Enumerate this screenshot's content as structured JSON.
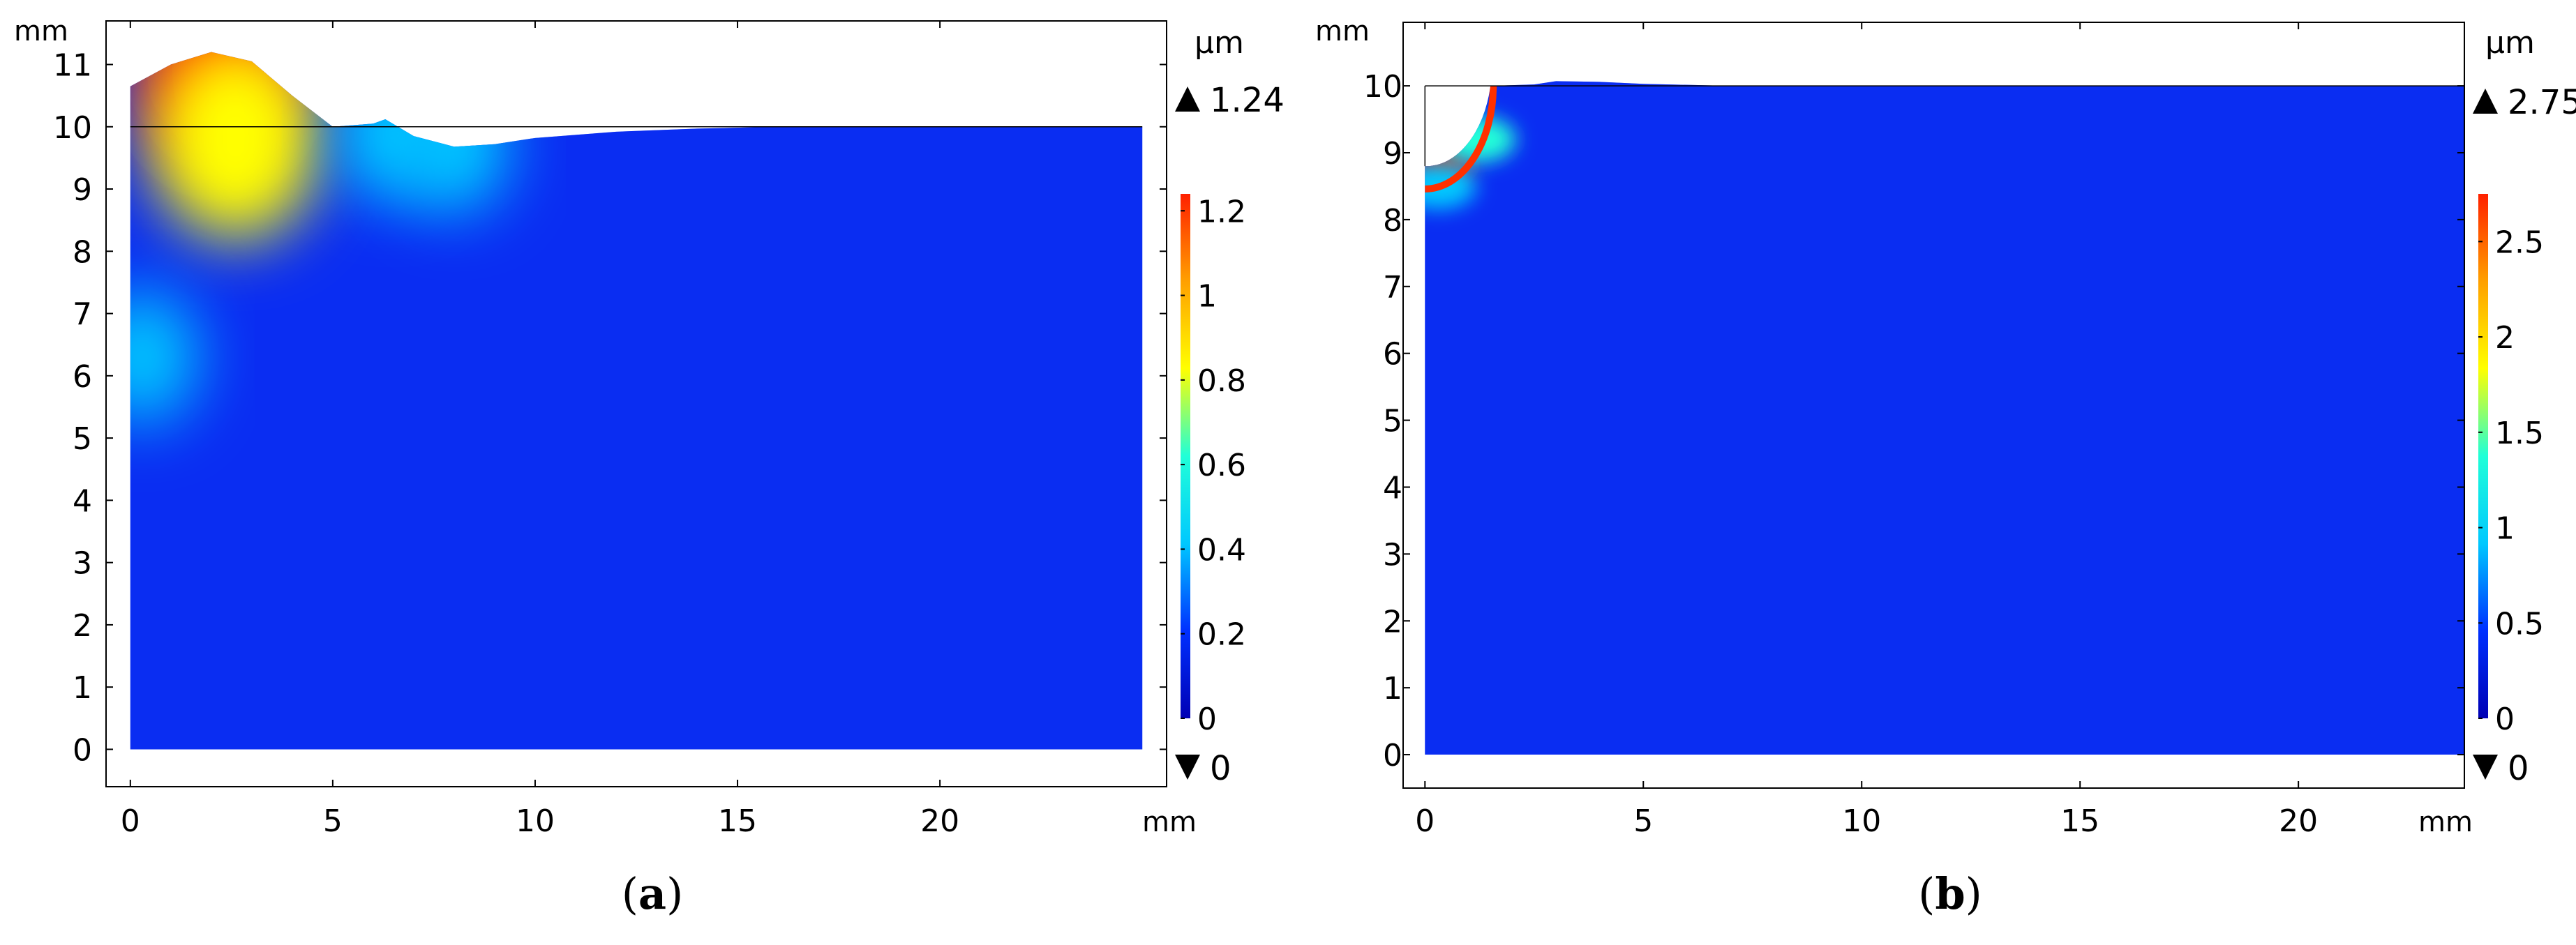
{
  "panels": [
    {
      "id": "a",
      "caption_letter": "a",
      "x_unit": "mm",
      "y_unit": "mm",
      "colorbar_unit": "µm",
      "max_label": "1.24",
      "min_label": "0",
      "colorbar_ticks": [
        "0",
        "0.2",
        "0.4",
        "0.6",
        "0.8",
        "1",
        "1.2"
      ]
    },
    {
      "id": "b",
      "caption_letter": "b",
      "x_unit": "mm",
      "y_unit": "mm",
      "colorbar_unit": "µm",
      "max_label": "2.75",
      "min_label": "0",
      "colorbar_ticks": [
        "0",
        "0.5",
        "1",
        "1.5",
        "2",
        "2.5"
      ]
    }
  ],
  "chart_data": [
    {
      "type": "heatmap",
      "title": "",
      "xlabel": "mm",
      "ylabel": "mm",
      "xlim": [
        -0.6,
        25.6
      ],
      "ylim": [
        -0.6,
        11.7
      ],
      "x_ticks": [
        0,
        5,
        10,
        15,
        20
      ],
      "y_ticks": [
        0,
        1,
        2,
        3,
        4,
        5,
        6,
        7,
        8,
        9,
        10,
        11
      ],
      "domain": {
        "x": [
          0,
          25
        ],
        "y": [
          0,
          10
        ]
      },
      "colorbar": {
        "label": "µm",
        "min": 0,
        "max": 1.24,
        "ticks": [
          0,
          0.2,
          0.4,
          0.6,
          0.8,
          1,
          1.2
        ]
      },
      "colormap": [
        "#0000b4",
        "#0030ff",
        "#00c8ff",
        "#20ffd8",
        "#ffff00",
        "#ffa000",
        "#ff2000"
      ],
      "deformed_top_surface": [
        [
          0,
          10.65
        ],
        [
          1,
          11.0
        ],
        [
          2,
          11.2
        ],
        [
          3,
          11.05
        ],
        [
          4,
          10.5
        ],
        [
          5,
          10.0
        ],
        [
          6,
          10.05
        ],
        [
          6.3,
          10.12
        ],
        [
          7,
          9.85
        ],
        [
          8,
          9.68
        ],
        [
          9,
          9.72
        ],
        [
          10,
          9.82
        ],
        [
          12,
          9.92
        ],
        [
          14,
          9.97
        ],
        [
          16,
          10.0
        ],
        [
          25,
          10.0
        ]
      ],
      "hotspots": [
        {
          "x": 2.2,
          "y": 10.9,
          "value": 1.2
        },
        {
          "x": 2.6,
          "y": 9.8,
          "value": 0.9
        },
        {
          "x": 0.3,
          "y": 6.3,
          "value": 0.5
        },
        {
          "x": 6.5,
          "y": 9.9,
          "value": 0.4
        },
        {
          "x": 8.0,
          "y": 9.7,
          "value": 0.35
        }
      ]
    },
    {
      "type": "heatmap",
      "title": "",
      "xlabel": "mm",
      "ylabel": "mm",
      "xlim": [
        -0.5,
        23.8
      ],
      "ylim": [
        -0.5,
        10.95
      ],
      "x_ticks": [
        0,
        5,
        10,
        15,
        20
      ],
      "y_ticks": [
        0,
        1,
        2,
        3,
        4,
        5,
        6,
        7,
        8,
        9,
        10
      ],
      "domain": {
        "x": [
          0,
          23.8
        ],
        "y": [
          0,
          10
        ]
      },
      "colorbar": {
        "label": "µm",
        "min": 0,
        "max": 2.75,
        "ticks": [
          0,
          0.5,
          1,
          1.5,
          2,
          2.5
        ]
      },
      "colormap": [
        "#0000b4",
        "#0030ff",
        "#00c8ff",
        "#20ffd8",
        "#ffff00",
        "#ffa000",
        "#ff2000"
      ],
      "cavity": {
        "center": [
          0,
          10
        ],
        "radius": 1.5
      },
      "deformed_top_surface": [
        [
          1.5,
          10.0
        ],
        [
          2.5,
          10.02
        ],
        [
          3.0,
          10.07
        ],
        [
          4.0,
          10.06
        ],
        [
          5.0,
          10.03
        ],
        [
          7.0,
          10.0
        ],
        [
          23.8,
          10.0
        ]
      ],
      "hotspots": [
        {
          "x": 0.4,
          "y": 8.8,
          "value": 2.75
        },
        {
          "x": 1.2,
          "y": 9.2,
          "value": 1.5
        },
        {
          "x": 0.3,
          "y": 8.5,
          "value": 0.8
        }
      ]
    }
  ]
}
